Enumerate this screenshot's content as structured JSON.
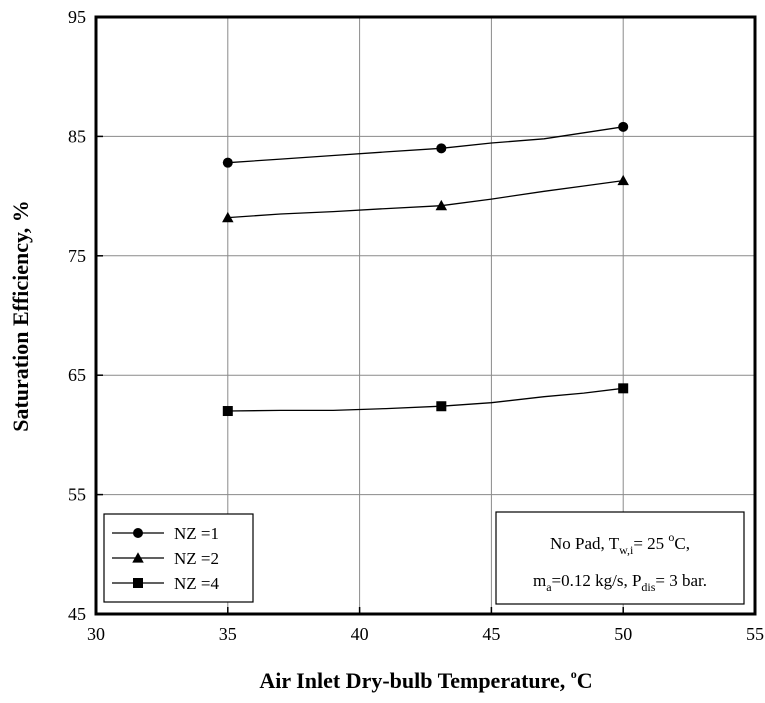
{
  "chart_data": {
    "type": "line",
    "xlabel": "Air Inlet Dry-bulb Temperature, ",
    "xlabel_unit_sup": "o",
    "xlabel_unit": "C",
    "ylabel": "Saturation Efficiency, %",
    "xlim": [
      30,
      55
    ],
    "ylim": [
      45,
      95
    ],
    "xticks": [
      "30",
      "35",
      "40",
      "45",
      "50",
      "55"
    ],
    "yticks": [
      "45",
      "55",
      "65",
      "75",
      "85",
      "95"
    ],
    "grid": true,
    "legend_position": "bottom-left",
    "series": [
      {
        "name": "NZ =1",
        "marker": "circle",
        "points": [
          [
            35,
            82.8
          ],
          [
            43.1,
            84.0
          ],
          [
            50,
            85.8
          ]
        ],
        "curve": [
          [
            35,
            82.8
          ],
          [
            37,
            83.1
          ],
          [
            39,
            83.4
          ],
          [
            41,
            83.7
          ],
          [
            43.1,
            84.0
          ],
          [
            45,
            84.45
          ],
          [
            47,
            84.8
          ],
          [
            48.5,
            85.3
          ],
          [
            50,
            85.8
          ]
        ]
      },
      {
        "name": "NZ =2",
        "marker": "triangle",
        "points": [
          [
            35,
            78.2
          ],
          [
            43.1,
            79.2
          ],
          [
            50,
            81.3
          ]
        ],
        "curve": [
          [
            35,
            78.2
          ],
          [
            37,
            78.5
          ],
          [
            39,
            78.7
          ],
          [
            41,
            78.95
          ],
          [
            43.1,
            79.2
          ],
          [
            45,
            79.75
          ],
          [
            47,
            80.4
          ],
          [
            48.5,
            80.85
          ],
          [
            50,
            81.3
          ]
        ]
      },
      {
        "name": "NZ =4",
        "marker": "square",
        "points": [
          [
            35,
            62.0
          ],
          [
            43.1,
            62.4
          ],
          [
            50,
            63.9
          ]
        ],
        "curve": [
          [
            35,
            62.0
          ],
          [
            37,
            62.05
          ],
          [
            39,
            62.05
          ],
          [
            41,
            62.2
          ],
          [
            43.1,
            62.4
          ],
          [
            45,
            62.7
          ],
          [
            47,
            63.2
          ],
          [
            48.5,
            63.5
          ],
          [
            50,
            63.9
          ]
        ]
      }
    ],
    "annotation": {
      "line1_a": "No Pad, T",
      "line1_sub": "w,i",
      "line1_b": "= 25 ",
      "line1_sup": "o",
      "line1_c": "C,",
      "line2_a": "m",
      "line2_sub1": "a",
      "line2_b": "=0.12 kg/s, P",
      "line2_sub2": "dis",
      "line2_c": "= 3 bar."
    }
  }
}
